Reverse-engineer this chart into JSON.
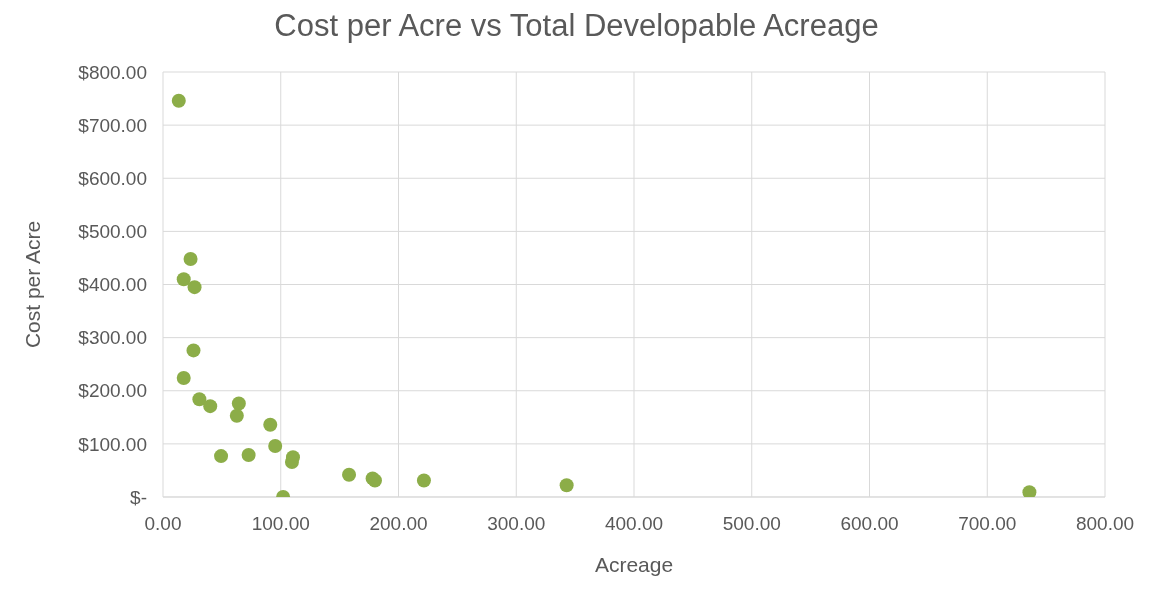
{
  "chart_data": {
    "type": "scatter",
    "title": "Cost per Acre vs Total Developable Acreage",
    "xlabel": "Acreage",
    "ylabel": "Cost per Acre",
    "x": [
      13.4,
      23.4,
      17.6,
      26.8,
      25.9,
      17.6,
      30.9,
      40.1,
      64.4,
      62.7,
      91.1,
      95.3,
      49.3,
      72.7,
      110.4,
      109.5,
      102,
      158,
      178,
      180,
      221.6,
      342.8,
      735.8
    ],
    "series": [
      {
        "color": "#8cad48",
        "values": [
          746,
          448,
          410,
          395,
          276,
          224,
          184,
          171,
          176,
          153,
          136,
          96,
          77,
          79,
          75,
          66,
          0,
          42,
          35,
          31,
          31,
          22,
          9
        ]
      }
    ],
    "xlim": [
      0,
      800
    ],
    "xticks": [
      {
        "value": 0,
        "label": "0.00"
      },
      {
        "value": 100,
        "label": "100.00"
      },
      {
        "value": 200,
        "label": "200.00"
      },
      {
        "value": 300,
        "label": "300.00"
      },
      {
        "value": 400,
        "label": "400.00"
      },
      {
        "value": 500,
        "label": "500.00"
      },
      {
        "value": 600,
        "label": "600.00"
      },
      {
        "value": 700,
        "label": "700.00"
      },
      {
        "value": 800,
        "label": "800.00"
      }
    ],
    "ylim": [
      0,
      800
    ],
    "yticks": [
      {
        "value": 0,
        "label": "$-"
      },
      {
        "value": 100,
        "label": "$100.00"
      },
      {
        "value": 200,
        "label": "$200.00"
      },
      {
        "value": 300,
        "label": "$300.00"
      },
      {
        "value": 400,
        "label": "$400.00"
      },
      {
        "value": 500,
        "label": "$500.00"
      },
      {
        "value": 600,
        "label": "$600.00"
      },
      {
        "value": 700,
        "label": "$700.00"
      },
      {
        "value": 800,
        "label": "$800.00"
      }
    ],
    "grid": true,
    "marker": "circle"
  }
}
